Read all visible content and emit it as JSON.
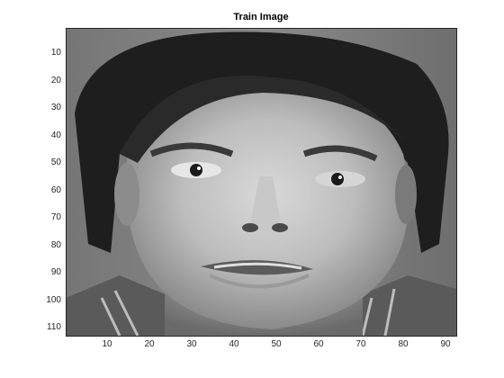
{
  "figure": {
    "title": "Train Image",
    "image_description_icon": "grayscale-face-photo",
    "axes": {
      "x_ticks": [
        "10",
        "20",
        "30",
        "40",
        "50",
        "60",
        "70",
        "80",
        "90"
      ],
      "y_ticks": [
        "10",
        "20",
        "30",
        "40",
        "50",
        "60",
        "70",
        "80",
        "90",
        "100",
        "110"
      ],
      "x_range": [
        0.5,
        92.5
      ],
      "y_range": [
        0.5,
        112.5
      ],
      "y_direction": "reversed",
      "colormap": "gray",
      "background_color": "#ffffff",
      "frame_color": "#262626"
    }
  }
}
